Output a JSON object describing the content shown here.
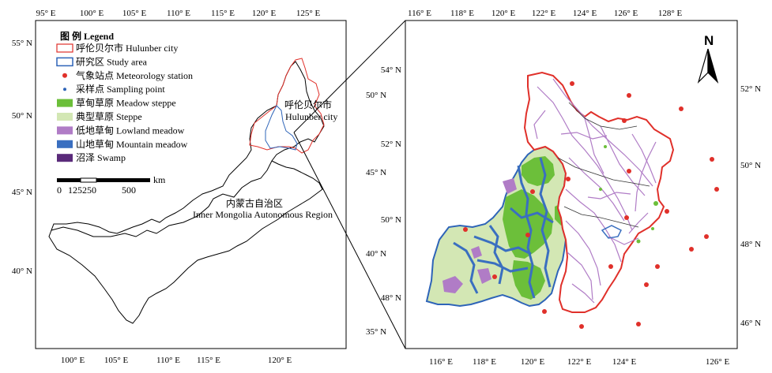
{
  "colors": {
    "hulunber_border": "#e0302a",
    "study_area_border": "#2e64b8",
    "station": "#e0302a",
    "sampling": "#2e64b8",
    "meadow_steppe": "#6cbf3a",
    "steppe": "#d3e7b4",
    "lowland_meadow": "#b07cc6",
    "mountain_meadow": "#3a6fc0",
    "swamp": "#5a2a7a"
  },
  "left_map": {
    "top_ticks": [
      "95° E",
      "100° E",
      "105° E",
      "110° E",
      "115° E",
      "120° E",
      "125° E"
    ],
    "bottom_ticks": [
      "100° E",
      "105° E",
      "110° E",
      "115° E",
      "120° E"
    ],
    "left_ticks": [
      "55° N",
      "50° N",
      "45° N",
      "40° N"
    ],
    "right_ticks": [
      "50° N",
      "45° N",
      "40° N",
      "35° N"
    ],
    "legend": {
      "title": "图 例 Legend",
      "items": [
        {
          "label": "呼伦贝尔市 Hulunber city",
          "symbol": "outline-red"
        },
        {
          "label": "研究区 Study area",
          "symbol": "outline-blue"
        },
        {
          "label": "气象站点 Meteorology station",
          "symbol": "dot-red"
        },
        {
          "label": "采样点 Sampling point",
          "symbol": "dot-blue"
        },
        {
          "label": "草甸草原 Meadow steppe",
          "symbol": "fill-meadow_steppe"
        },
        {
          "label": "典型草原 Steppe",
          "symbol": "fill-steppe"
        },
        {
          "label": "低地草甸  Lowland meadow",
          "symbol": "fill-lowland_meadow"
        },
        {
          "label": "山地草甸 Mountain meadow",
          "symbol": "fill-mountain_meadow"
        },
        {
          "label": "沼泽 Swamp",
          "symbol": "fill-swamp"
        }
      ],
      "scale": {
        "unit": "km",
        "labels": [
          "0",
          "125",
          "250",
          "500"
        ]
      }
    },
    "labels": {
      "hulunber_cn": "呼伦贝尔市",
      "hulunber_en": "Hulunber city",
      "imar_cn": "内蒙古自治区",
      "imar_en": "Inner Mongolia Autonomous Region"
    }
  },
  "right_map": {
    "top_ticks": [
      "116° E",
      "118° E",
      "120° E",
      "122° E",
      "124° E",
      "126° E",
      "128° E"
    ],
    "bottom_ticks": [
      "116° E",
      "118° E",
      "120° E",
      "122° E",
      "124° E",
      "126° E"
    ],
    "left_ticks": [
      "54° N",
      "52° N",
      "50° N",
      "48° N"
    ],
    "right_ticks": [
      "52° N",
      "50° N",
      "48° N",
      "46° N"
    ],
    "north_label": "N"
  }
}
